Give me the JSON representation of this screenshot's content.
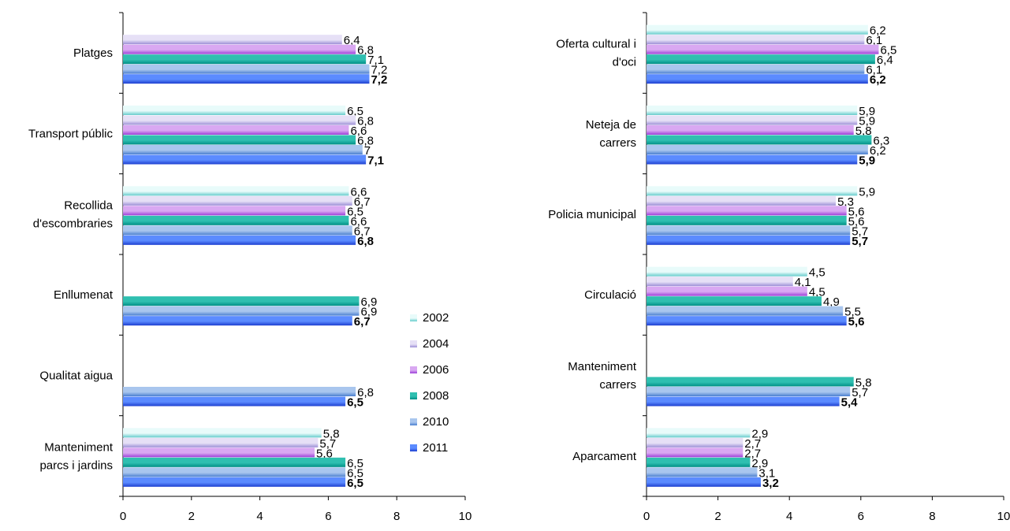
{
  "series_styles": [
    {
      "name": "2002",
      "color_light": "#e8fbfa",
      "color_dark": "#66cccc"
    },
    {
      "name": "2004",
      "color_light": "#e6e0f6",
      "color_dark": "#9c8fd6"
    },
    {
      "name": "2006",
      "color_light": "#d9a8f2",
      "color_dark": "#9c3fd8"
    },
    {
      "name": "2008",
      "color_light": "#2fbfb0",
      "color_dark": "#008f86"
    },
    {
      "name": "2010",
      "color_light": "#a9c6ee",
      "color_dark": "#4a7fd0"
    },
    {
      "name": "2011",
      "color_light": "#5b8bff",
      "color_dark": "#1d3fd0"
    }
  ],
  "chart_data": [
    {
      "type": "bar",
      "orientation": "horizontal",
      "xlim": [
        0,
        10
      ],
      "x_ticks": [
        "0",
        "2",
        "4",
        "6",
        "8",
        "10"
      ],
      "legend_position": "right",
      "categories": [
        {
          "label": [
            "Platges"
          ],
          "values": [
            {
              "series": "2002",
              "value": null,
              "label": ""
            },
            {
              "series": "2004",
              "value": 6.4,
              "label": "6,4"
            },
            {
              "series": "2006",
              "value": 6.8,
              "label": "6,8"
            },
            {
              "series": "2008",
              "value": 7.1,
              "label": "7,1"
            },
            {
              "series": "2010",
              "value": 7.2,
              "label": "7,2"
            },
            {
              "series": "2011",
              "value": 7.2,
              "label": "7,2"
            }
          ]
        },
        {
          "label": [
            "Transport públic"
          ],
          "values": [
            {
              "series": "2002",
              "value": 6.5,
              "label": "6,5"
            },
            {
              "series": "2004",
              "value": 6.8,
              "label": "6,8"
            },
            {
              "series": "2006",
              "value": 6.6,
              "label": "6,6"
            },
            {
              "series": "2008",
              "value": 6.8,
              "label": "6,8"
            },
            {
              "series": "2010",
              "value": 7,
              "label": "7"
            },
            {
              "series": "2011",
              "value": 7.1,
              "label": "7,1"
            }
          ]
        },
        {
          "label": [
            "Recollida",
            "d'escombraries"
          ],
          "values": [
            {
              "series": "2002",
              "value": 6.6,
              "label": "6,6"
            },
            {
              "series": "2004",
              "value": 6.7,
              "label": "6,7"
            },
            {
              "series": "2006",
              "value": 6.5,
              "label": "6,5"
            },
            {
              "series": "2008",
              "value": 6.6,
              "label": "6,6"
            },
            {
              "series": "2010",
              "value": 6.7,
              "label": "6,7"
            },
            {
              "series": "2011",
              "value": 6.8,
              "label": "6,8"
            }
          ]
        },
        {
          "label": [
            "Enllumenat"
          ],
          "values": [
            {
              "series": "2002",
              "value": null,
              "label": ""
            },
            {
              "series": "2004",
              "value": null,
              "label": ""
            },
            {
              "series": "2006",
              "value": null,
              "label": ""
            },
            {
              "series": "2008",
              "value": 6.9,
              "label": "6,9"
            },
            {
              "series": "2010",
              "value": 6.9,
              "label": "6,9"
            },
            {
              "series": "2011",
              "value": 6.7,
              "label": "6,7"
            }
          ]
        },
        {
          "label": [
            "Qualitat aigua"
          ],
          "values": [
            {
              "series": "2002",
              "value": null,
              "label": ""
            },
            {
              "series": "2004",
              "value": null,
              "label": ""
            },
            {
              "series": "2006",
              "value": null,
              "label": ""
            },
            {
              "series": "2008",
              "value": null,
              "label": ""
            },
            {
              "series": "2010",
              "value": 6.8,
              "label": "6,8"
            },
            {
              "series": "2011",
              "value": 6.5,
              "label": "6,5"
            }
          ]
        },
        {
          "label": [
            "Manteniment",
            "parcs i jardins"
          ],
          "values": [
            {
              "series": "2002",
              "value": 5.8,
              "label": "5,8"
            },
            {
              "series": "2004",
              "value": 5.7,
              "label": "5,7"
            },
            {
              "series": "2006",
              "value": 5.6,
              "label": "5,6"
            },
            {
              "series": "2008",
              "value": 6.5,
              "label": "6,5"
            },
            {
              "series": "2010",
              "value": 6.5,
              "label": "6,5"
            },
            {
              "series": "2011",
              "value": 6.5,
              "label": "6,5"
            }
          ]
        }
      ]
    },
    {
      "type": "bar",
      "orientation": "horizontal",
      "xlim": [
        0,
        10
      ],
      "x_ticks": [
        "0",
        "2",
        "4",
        "6",
        "8",
        "10"
      ],
      "legend_position": "none",
      "categories": [
        {
          "label": [
            "Oferta cultural i",
            "d'oci"
          ],
          "values": [
            {
              "series": "2002",
              "value": 6.2,
              "label": "6,2"
            },
            {
              "series": "2004",
              "value": 6.1,
              "label": "6,1"
            },
            {
              "series": "2006",
              "value": 6.5,
              "label": "6,5"
            },
            {
              "series": "2008",
              "value": 6.4,
              "label": "6,4"
            },
            {
              "series": "2010",
              "value": 6.1,
              "label": "6,1"
            },
            {
              "series": "2011",
              "value": 6.2,
              "label": "6,2"
            }
          ]
        },
        {
          "label": [
            "Neteja de",
            "carrers"
          ],
          "values": [
            {
              "series": "2002",
              "value": 5.9,
              "label": "5,9"
            },
            {
              "series": "2004",
              "value": 5.9,
              "label": "5,9"
            },
            {
              "series": "2006",
              "value": 5.8,
              "label": "5,8"
            },
            {
              "series": "2008",
              "value": 6.3,
              "label": "6,3"
            },
            {
              "series": "2010",
              "value": 6.2,
              "label": "6,2"
            },
            {
              "series": "2011",
              "value": 5.9,
              "label": "5,9"
            }
          ]
        },
        {
          "label": [
            "Policia municipal"
          ],
          "values": [
            {
              "series": "2002",
              "value": 5.9,
              "label": "5,9"
            },
            {
              "series": "2004",
              "value": 5.3,
              "label": "5,3"
            },
            {
              "series": "2006",
              "value": 5.6,
              "label": "5,6"
            },
            {
              "series": "2008",
              "value": 5.6,
              "label": "5,6"
            },
            {
              "series": "2010",
              "value": 5.7,
              "label": "5,7"
            },
            {
              "series": "2011",
              "value": 5.7,
              "label": "5,7"
            }
          ]
        },
        {
          "label": [
            "Circulació"
          ],
          "values": [
            {
              "series": "2002",
              "value": 4.5,
              "label": "4,5"
            },
            {
              "series": "2004",
              "value": 4.1,
              "label": "4,1"
            },
            {
              "series": "2006",
              "value": 4.5,
              "label": "4,5"
            },
            {
              "series": "2008",
              "value": 4.9,
              "label": "4,9"
            },
            {
              "series": "2010",
              "value": 5.5,
              "label": "5,5"
            },
            {
              "series": "2011",
              "value": 5.6,
              "label": "5,6"
            }
          ]
        },
        {
          "label": [
            "Manteniment",
            "carrers"
          ],
          "values": [
            {
              "series": "2002",
              "value": null,
              "label": ""
            },
            {
              "series": "2004",
              "value": null,
              "label": ""
            },
            {
              "series": "2006",
              "value": null,
              "label": ""
            },
            {
              "series": "2008",
              "value": 5.8,
              "label": "5,8"
            },
            {
              "series": "2010",
              "value": 5.7,
              "label": "5,7"
            },
            {
              "series": "2011",
              "value": 5.4,
              "label": "5,4"
            }
          ]
        },
        {
          "label": [
            "Aparcament"
          ],
          "values": [
            {
              "series": "2002",
              "value": 2.9,
              "label": "2,9"
            },
            {
              "series": "2004",
              "value": 2.7,
              "label": "2,7"
            },
            {
              "series": "2006",
              "value": 2.7,
              "label": "2,7"
            },
            {
              "series": "2008",
              "value": 2.9,
              "label": "2,9"
            },
            {
              "series": "2010",
              "value": 3.1,
              "label": "3,1"
            },
            {
              "series": "2011",
              "value": 3.2,
              "label": "3,2"
            }
          ]
        }
      ]
    }
  ]
}
